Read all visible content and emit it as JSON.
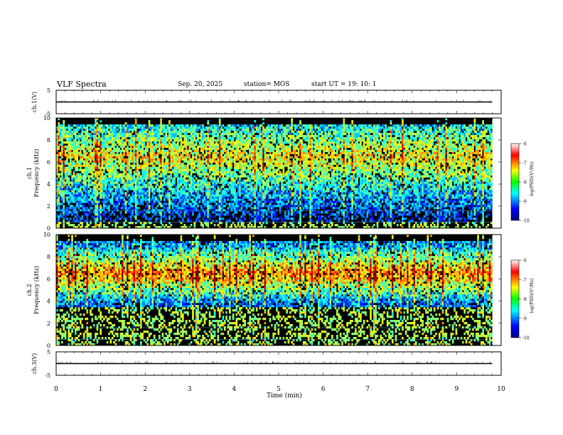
{
  "header": {
    "title": "VLF Spectra",
    "date": "Sep. 20, 2025",
    "station": "station= MOS",
    "start": "start  UT =   19: 10: 1"
  },
  "chart_data": [
    {
      "type": "line",
      "panel": "ch1-waveform",
      "ylabel": "ch.1(V)",
      "ylim": [
        -5,
        5
      ],
      "yticks": [
        "5",
        "-5"
      ],
      "xlim": [
        0,
        10
      ],
      "series": [
        {
          "x": [
            0,
            9.8
          ],
          "y": [
            0,
            0
          ]
        }
      ]
    },
    {
      "type": "heatmap",
      "panel": "ch1-spectrogram",
      "ylabel": "ch.1\nFrequency (kHz)",
      "ylim": [
        0,
        10
      ],
      "yticks": [
        "0",
        "2",
        "4",
        "6",
        "8",
        "10"
      ],
      "xlim": [
        0,
        10
      ],
      "x_end_data": 9.8,
      "colorbar": {
        "label": "log(PSD)(V²/Hz)",
        "range": [
          -10,
          -6
        ],
        "ticks": [
          "-6",
          "-7",
          "-8",
          "-9",
          "-10"
        ],
        "colormap": "jet"
      },
      "band_khz": [
        0.5,
        9.5
      ],
      "band_peak_khz": 6.5
    },
    {
      "type": "heatmap",
      "panel": "ch2-spectrogram",
      "ylabel": "ch.2\nFrequency (kHz)",
      "ylim": [
        0,
        10
      ],
      "yticks": [
        "0",
        "2",
        "4",
        "6",
        "8",
        "10"
      ],
      "xlim": [
        0,
        10
      ],
      "x_end_data": 9.8,
      "colorbar": {
        "label": "log(PSD)(V²/Hz)",
        "range": [
          -10,
          -6
        ],
        "ticks": [
          "-6",
          "-7",
          "-8",
          "-9",
          "-10"
        ],
        "colormap": "jet"
      },
      "band_khz": [
        3.5,
        9.5
      ],
      "band_peak_khz": 6.5
    },
    {
      "type": "line",
      "panel": "ch3-waveform",
      "ylabel": "ch.3(V)",
      "ylim": [
        -5,
        5
      ],
      "yticks": [
        "5",
        "-5"
      ],
      "xlim": [
        0,
        10
      ],
      "xlabel": "Time (min)",
      "xticks": [
        "0",
        "1",
        "2",
        "3",
        "4",
        "5",
        "6",
        "7",
        "8",
        "9",
        "10"
      ],
      "series": [
        {
          "x": [
            0,
            9.8
          ],
          "y": [
            0,
            0
          ]
        }
      ]
    }
  ]
}
